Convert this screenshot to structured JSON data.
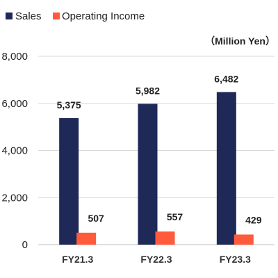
{
  "chart_data": {
    "type": "bar",
    "categories": [
      "FY21.3",
      "FY22.3",
      "FY23.3"
    ],
    "series": [
      {
        "name": "Sales",
        "values": [
          5375,
          5982,
          6482
        ],
        "labels": [
          "5,375",
          "5,982",
          "6,482"
        ],
        "color": "#1f2957"
      },
      {
        "name": "Operating Income",
        "values": [
          507,
          557,
          429
        ],
        "labels": [
          "507",
          "557",
          "429"
        ],
        "color": "#ff5a3c"
      }
    ],
    "unit_label": "（Million Yen）",
    "ylim": [
      0,
      8000
    ],
    "yticks": [
      0,
      2000,
      4000,
      6000,
      8000
    ],
    "ytick_labels": [
      "0",
      "2,000",
      "4,000",
      "6,000",
      "8,000"
    ],
    "grid": true,
    "legend_position": "top-left"
  }
}
